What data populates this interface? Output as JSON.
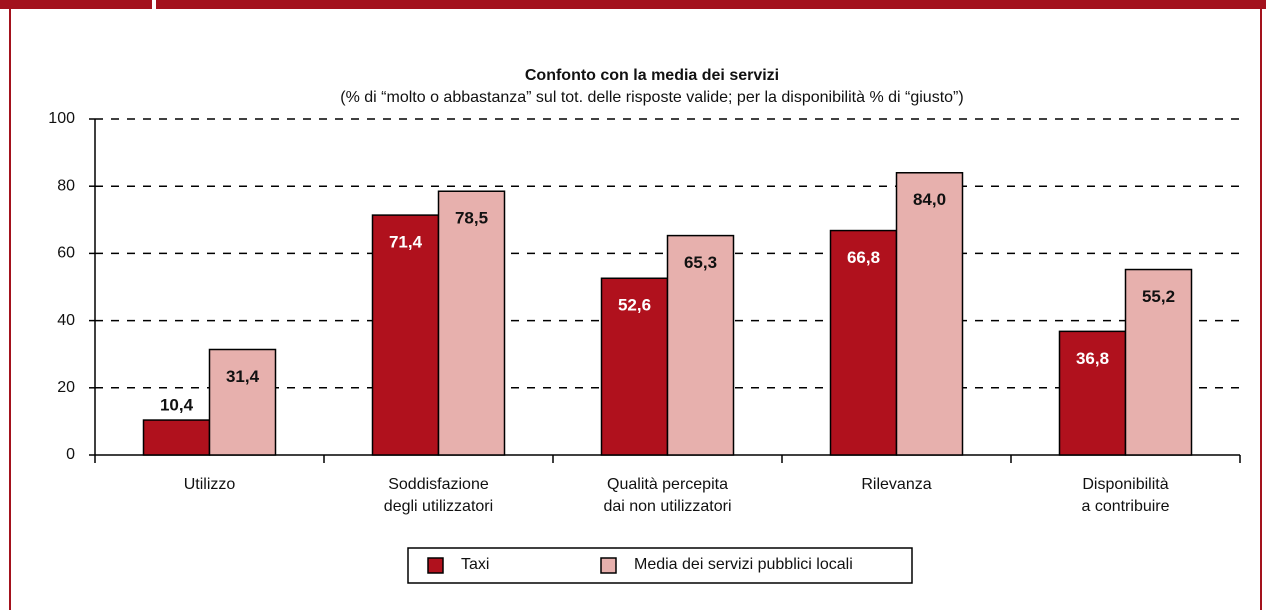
{
  "chart_data": {
    "type": "bar",
    "title": "Confonto con la media dei servizi",
    "subtitle": "(% di “molto o abbastanza” sul tot. delle risposte valide; per la disponibilità % di “giusto”)",
    "categories": [
      "Utilizzo",
      "Soddisfazione\ndegli utilizzatori",
      "Qualità percepita\ndai non utilizzatori",
      "Rilevanza",
      "Disponibilità\na contribuire"
    ],
    "series": [
      {
        "name": "Taxi",
        "color": "#b0111d",
        "values": [
          10.4,
          71.4,
          52.6,
          66.8,
          36.8
        ],
        "value_labels": [
          "10,4",
          "71,4",
          "52,6",
          "66,8",
          "36,8"
        ]
      },
      {
        "name": "Media dei servizi pubblici locali",
        "color": "#e7b0ad",
        "values": [
          31.4,
          78.5,
          65.3,
          84.0,
          55.2
        ],
        "value_labels": [
          "31,4",
          "78,5",
          "65,3",
          "84,0",
          "55,2"
        ]
      }
    ],
    "ylim": [
      0,
      100
    ],
    "yticks": [
      0,
      20,
      40,
      60,
      80,
      100
    ],
    "grid": true,
    "legend": "bottom"
  }
}
